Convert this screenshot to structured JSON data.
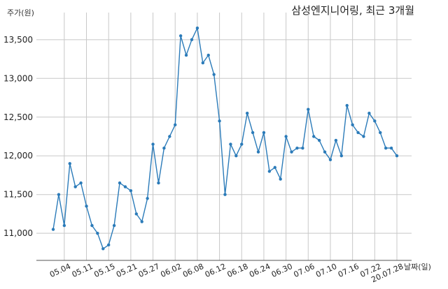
{
  "chart_data": {
    "type": "line",
    "title": "삼성엔지니어링, 최근 3개월",
    "ylabel": "주가(원)",
    "xlabel": "날짜(일)",
    "ylim": [
      10650,
      13850
    ],
    "yticks": [
      11000,
      11500,
      12000,
      12500,
      13000,
      13500
    ],
    "ytick_labels": [
      "11,000",
      "11,500",
      "12,000",
      "12,500",
      "13,000",
      "13,500"
    ],
    "xtick_labels": [
      "05.04",
      "05.11",
      "05.15",
      "05.21",
      "05.27",
      "06.02",
      "06.08",
      "06.12",
      "06.18",
      "06.24",
      "06.30",
      "07.06",
      "07.10",
      "07.16",
      "07.22",
      "20.07.28"
    ],
    "xtick_index": [
      2,
      6,
      10,
      14,
      18,
      22,
      26,
      30,
      34,
      38,
      42,
      46,
      50,
      54,
      58,
      62
    ],
    "grid": true,
    "line_color": "#2b7bb9",
    "values": [
      11050,
      11500,
      11100,
      11900,
      11600,
      11650,
      11350,
      11100,
      11000,
      10800,
      10850,
      11100,
      11650,
      11600,
      11550,
      11250,
      11150,
      11450,
      12150,
      11650,
      12100,
      12250,
      12400,
      13550,
      13300,
      13500,
      13650,
      13200,
      13300,
      13050,
      12450,
      11500,
      12150,
      12000,
      12150,
      12550,
      12300,
      12050,
      12300,
      11800,
      11850,
      11700,
      12250,
      12050,
      12100,
      12100,
      12600,
      12250,
      12200,
      12050,
      11950,
      12200,
      12000,
      12650,
      12400,
      12300,
      12250,
      12550,
      12450,
      12300,
      12100,
      12100,
      12000
    ]
  }
}
